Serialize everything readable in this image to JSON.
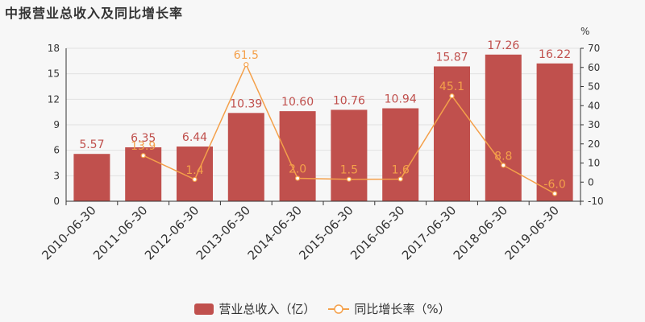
{
  "title": "中报营业总收入及同比增长率",
  "right_axis_unit": "%",
  "colors": {
    "bar": "#c0504d",
    "line": "#f4a04a",
    "bar_label": "#c0504d",
    "line_label": "#f4a04a",
    "axis_text": "#333333",
    "grid": "#e2e2e2"
  },
  "legend": {
    "bar_label": "营业总收入（亿）",
    "line_label": "同比增长率（%）"
  },
  "chart_data": {
    "type": "bar",
    "categories": [
      "2010-06-30",
      "2011-06-30",
      "2012-06-30",
      "2013-06-30",
      "2014-06-30",
      "2015-06-30",
      "2016-06-30",
      "2017-06-30",
      "2018-06-30",
      "2019-06-30"
    ],
    "series": [
      {
        "name": "营业总收入（亿）",
        "type": "bar",
        "axis": "left",
        "values": [
          5.57,
          6.35,
          6.44,
          10.39,
          10.6,
          10.76,
          10.94,
          15.87,
          17.26,
          16.22
        ],
        "labels": [
          "5.57",
          "6.35",
          "6.44",
          "10.39",
          "10.60",
          "10.76",
          "10.94",
          "15.87",
          "17.26",
          "16.22"
        ]
      },
      {
        "name": "同比增长率（%）",
        "type": "line",
        "axis": "right",
        "values": [
          null,
          13.9,
          1.4,
          61.5,
          2.0,
          1.5,
          1.6,
          45.1,
          8.8,
          -6.0
        ],
        "labels": [
          "",
          "13.9",
          "1.4",
          "61.5",
          "2.0",
          "1.5",
          "1.6",
          "45.1",
          "8.8",
          "-6.0"
        ]
      }
    ],
    "y_left": {
      "min": 0,
      "max": 18,
      "ticks": [
        "0",
        "3",
        "6",
        "9",
        "12",
        "15",
        "18"
      ]
    },
    "y_right": {
      "min": -10,
      "max": 70,
      "ticks": [
        "-10",
        "0",
        "10",
        "20",
        "30",
        "40",
        "50",
        "60",
        "70"
      ]
    },
    "grid": true,
    "legend_position": "bottom"
  }
}
